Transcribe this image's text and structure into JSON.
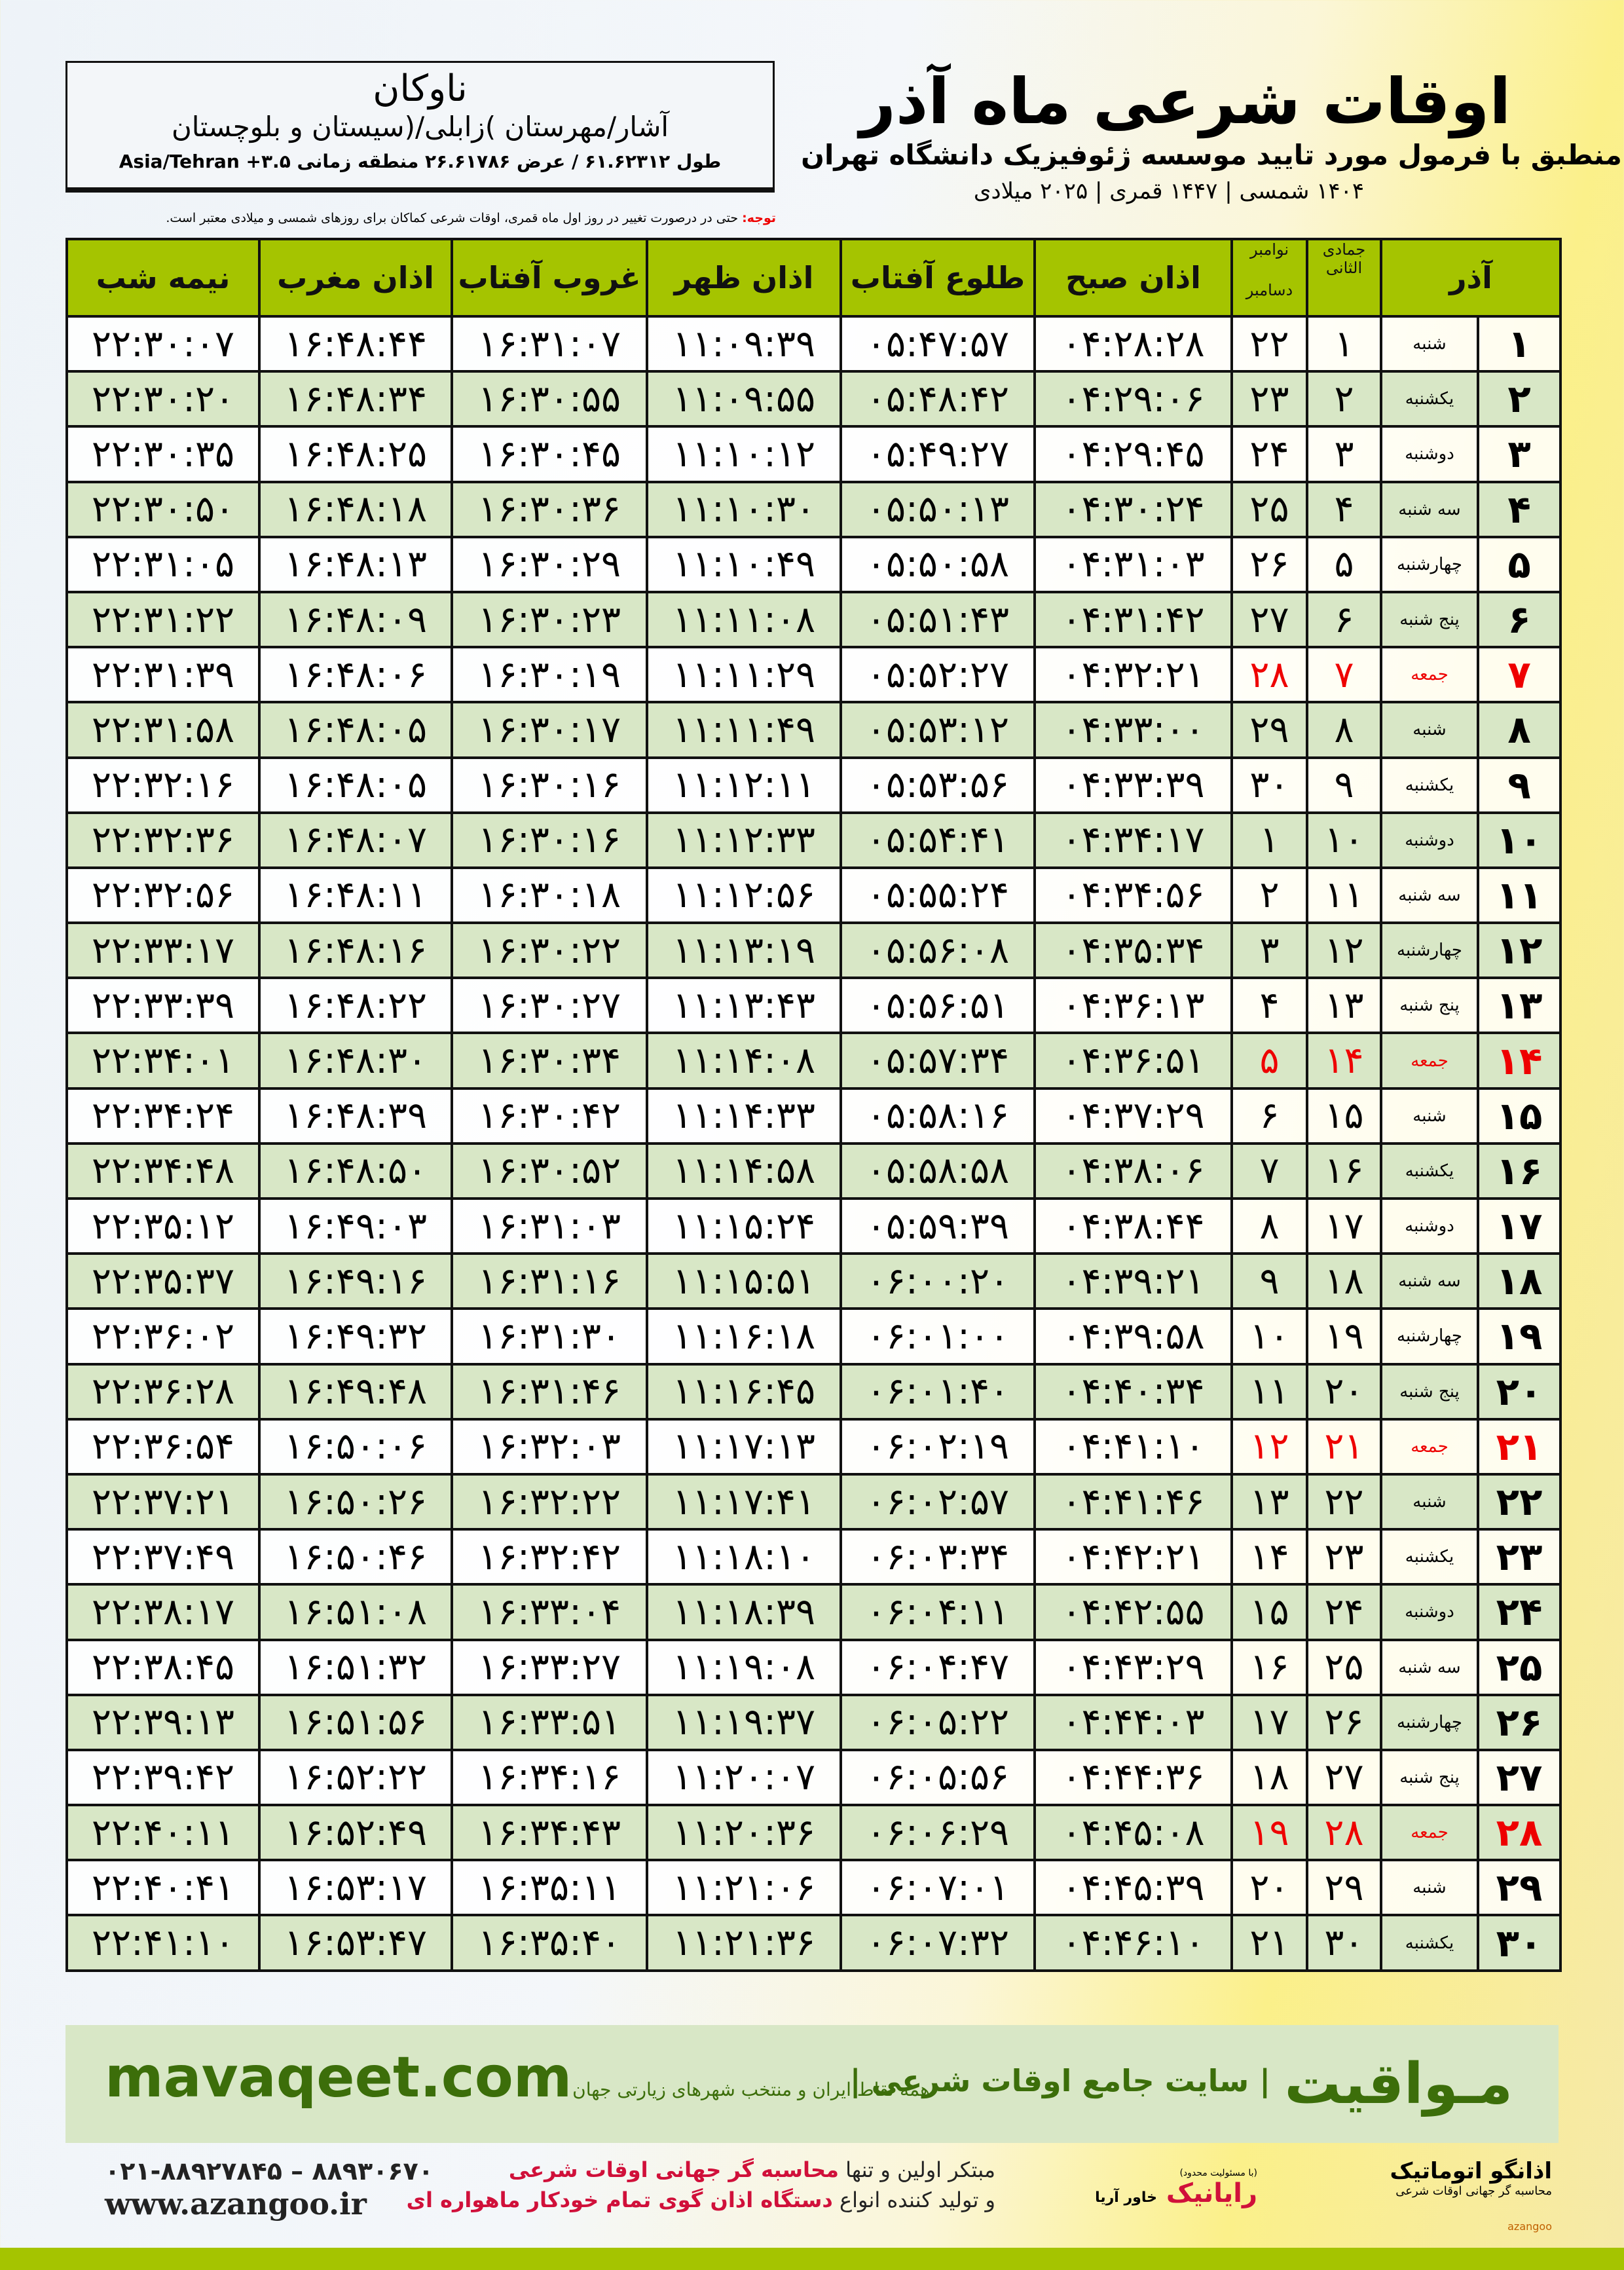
{
  "info": {
    "city": "ناوکان",
    "province": "آشار/مهرستان )زابلی/(سیستان و بلوچستان",
    "coords": "طول ۶۱.۶۲۳۱۲ / عرض ۲۶.۶۱۷۸۶ منطقه زمانی ۳.۵+ Asia/Tehran"
  },
  "title": {
    "main": "اوقات شرعی ماه آذر",
    "sub": "منطبق با فرمول مورد تایید موسسه ژئوفیزیک دانشگاه تهران",
    "years": "۱۴۰۴ شمسی | ۱۴۴۷ قمری | ۲۰۲۵ میلادی"
  },
  "note": {
    "label": "توجه:",
    "text": " حتی در درصورت تغییر در روز اول ماه قمری، اوقات شرعی کماکان برای روزهای شمسی و میلادی معتبر است."
  },
  "table": {
    "headers": {
      "month": "آذر",
      "hijri": "جمادی الثانی",
      "greg1": "نوامبر",
      "greg2": "دسامبر",
      "sobh": "اذان صبح",
      "tolu": "طلوع آفتاب",
      "zohr": "اذان ظهر",
      "ghoroob": "غروب آفتاب",
      "maghreb": "اذان مغرب",
      "nime": "نیمه شب"
    },
    "friday_color": "#e00000",
    "header_color": "#a5c400",
    "rows": [
      [
        "۱",
        "شنبه",
        "۱",
        "۲۲",
        "۰۴:۲۸:۲۸",
        "۰۵:۴۷:۵۷",
        "۱۱:۰۹:۳۹",
        "۱۶:۳۱:۰۷",
        "۱۶:۴۸:۴۴",
        "۲۲:۳۰:۰۷"
      ],
      [
        "۲",
        "یکشنبه",
        "۲",
        "۲۳",
        "۰۴:۲۹:۰۶",
        "۰۵:۴۸:۴۲",
        "۱۱:۰۹:۵۵",
        "۱۶:۳۰:۵۵",
        "۱۶:۴۸:۳۴",
        "۲۲:۳۰:۲۰"
      ],
      [
        "۳",
        "دوشنبه",
        "۳",
        "۲۴",
        "۰۴:۲۹:۴۵",
        "۰۵:۴۹:۲۷",
        "۱۱:۱۰:۱۲",
        "۱۶:۳۰:۴۵",
        "۱۶:۴۸:۲۵",
        "۲۲:۳۰:۳۵"
      ],
      [
        "۴",
        "سه شنبه",
        "۴",
        "۲۵",
        "۰۴:۳۰:۲۴",
        "۰۵:۵۰:۱۳",
        "۱۱:۱۰:۳۰",
        "۱۶:۳۰:۳۶",
        "۱۶:۴۸:۱۸",
        "۲۲:۳۰:۵۰"
      ],
      [
        "۵",
        "چهارشنبه",
        "۵",
        "۲۶",
        "۰۴:۳۱:۰۳",
        "۰۵:۵۰:۵۸",
        "۱۱:۱۰:۴۹",
        "۱۶:۳۰:۲۹",
        "۱۶:۴۸:۱۳",
        "۲۲:۳۱:۰۵"
      ],
      [
        "۶",
        "پنج شنبه",
        "۶",
        "۲۷",
        "۰۴:۳۱:۴۲",
        "۰۵:۵۱:۴۳",
        "۱۱:۱۱:۰۸",
        "۱۶:۳۰:۲۳",
        "۱۶:۴۸:۰۹",
        "۲۲:۳۱:۲۲"
      ],
      [
        "۷",
        "جمعه",
        "۷",
        "۲۸",
        "۰۴:۳۲:۲۱",
        "۰۵:۵۲:۲۷",
        "۱۱:۱۱:۲۹",
        "۱۶:۳۰:۱۹",
        "۱۶:۴۸:۰۶",
        "۲۲:۳۱:۳۹"
      ],
      [
        "۸",
        "شنبه",
        "۸",
        "۲۹",
        "۰۴:۳۳:۰۰",
        "۰۵:۵۳:۱۲",
        "۱۱:۱۱:۴۹",
        "۱۶:۳۰:۱۷",
        "۱۶:۴۸:۰۵",
        "۲۲:۳۱:۵۸"
      ],
      [
        "۹",
        "یکشنبه",
        "۹",
        "۳۰",
        "۰۴:۳۳:۳۹",
        "۰۵:۵۳:۵۶",
        "۱۱:۱۲:۱۱",
        "۱۶:۳۰:۱۶",
        "۱۶:۴۸:۰۵",
        "۲۲:۳۲:۱۶"
      ],
      [
        "۱۰",
        "دوشنبه",
        "۱۰",
        "۱",
        "۰۴:۳۴:۱۷",
        "۰۵:۵۴:۴۱",
        "۱۱:۱۲:۳۳",
        "۱۶:۳۰:۱۶",
        "۱۶:۴۸:۰۷",
        "۲۲:۳۲:۳۶"
      ],
      [
        "۱۱",
        "سه شنبه",
        "۱۱",
        "۲",
        "۰۴:۳۴:۵۶",
        "۰۵:۵۵:۲۴",
        "۱۱:۱۲:۵۶",
        "۱۶:۳۰:۱۸",
        "۱۶:۴۸:۱۱",
        "۲۲:۳۲:۵۶"
      ],
      [
        "۱۲",
        "چهارشنبه",
        "۱۲",
        "۳",
        "۰۴:۳۵:۳۴",
        "۰۵:۵۶:۰۸",
        "۱۱:۱۳:۱۹",
        "۱۶:۳۰:۲۲",
        "۱۶:۴۸:۱۶",
        "۲۲:۳۳:۱۷"
      ],
      [
        "۱۳",
        "پنج شنبه",
        "۱۳",
        "۴",
        "۰۴:۳۶:۱۳",
        "۰۵:۵۶:۵۱",
        "۱۱:۱۳:۴۳",
        "۱۶:۳۰:۲۷",
        "۱۶:۴۸:۲۲",
        "۲۲:۳۳:۳۹"
      ],
      [
        "۱۴",
        "جمعه",
        "۱۴",
        "۵",
        "۰۴:۳۶:۵۱",
        "۰۵:۵۷:۳۴",
        "۱۱:۱۴:۰۸",
        "۱۶:۳۰:۳۴",
        "۱۶:۴۸:۳۰",
        "۲۲:۳۴:۰۱"
      ],
      [
        "۱۵",
        "شنبه",
        "۱۵",
        "۶",
        "۰۴:۳۷:۲۹",
        "۰۵:۵۸:۱۶",
        "۱۱:۱۴:۳۳",
        "۱۶:۳۰:۴۲",
        "۱۶:۴۸:۳۹",
        "۲۲:۳۴:۲۴"
      ],
      [
        "۱۶",
        "یکشنبه",
        "۱۶",
        "۷",
        "۰۴:۳۸:۰۶",
        "۰۵:۵۸:۵۸",
        "۱۱:۱۴:۵۸",
        "۱۶:۳۰:۵۲",
        "۱۶:۴۸:۵۰",
        "۲۲:۳۴:۴۸"
      ],
      [
        "۱۷",
        "دوشنبه",
        "۱۷",
        "۸",
        "۰۴:۳۸:۴۴",
        "۰۵:۵۹:۳۹",
        "۱۱:۱۵:۲۴",
        "۱۶:۳۱:۰۳",
        "۱۶:۴۹:۰۳",
        "۲۲:۳۵:۱۲"
      ],
      [
        "۱۸",
        "سه شنبه",
        "۱۸",
        "۹",
        "۰۴:۳۹:۲۱",
        "۰۶:۰۰:۲۰",
        "۱۱:۱۵:۵۱",
        "۱۶:۳۱:۱۶",
        "۱۶:۴۹:۱۶",
        "۲۲:۳۵:۳۷"
      ],
      [
        "۱۹",
        "چهارشنبه",
        "۱۹",
        "۱۰",
        "۰۴:۳۹:۵۸",
        "۰۶:۰۱:۰۰",
        "۱۱:۱۶:۱۸",
        "۱۶:۳۱:۳۰",
        "۱۶:۴۹:۳۲",
        "۲۲:۳۶:۰۲"
      ],
      [
        "۲۰",
        "پنج شنبه",
        "۲۰",
        "۱۱",
        "۰۴:۴۰:۳۴",
        "۰۶:۰۱:۴۰",
        "۱۱:۱۶:۴۵",
        "۱۶:۳۱:۴۶",
        "۱۶:۴۹:۴۸",
        "۲۲:۳۶:۲۸"
      ],
      [
        "۲۱",
        "جمعه",
        "۲۱",
        "۱۲",
        "۰۴:۴۱:۱۰",
        "۰۶:۰۲:۱۹",
        "۱۱:۱۷:۱۳",
        "۱۶:۳۲:۰۳",
        "۱۶:۵۰:۰۶",
        "۲۲:۳۶:۵۴"
      ],
      [
        "۲۲",
        "شنبه",
        "۲۲",
        "۱۳",
        "۰۴:۴۱:۴۶",
        "۰۶:۰۲:۵۷",
        "۱۱:۱۷:۴۱",
        "۱۶:۳۲:۲۲",
        "۱۶:۵۰:۲۶",
        "۲۲:۳۷:۲۱"
      ],
      [
        "۲۳",
        "یکشنبه",
        "۲۳",
        "۱۴",
        "۰۴:۴۲:۲۱",
        "۰۶:۰۳:۳۴",
        "۱۱:۱۸:۱۰",
        "۱۶:۳۲:۴۲",
        "۱۶:۵۰:۴۶",
        "۲۲:۳۷:۴۹"
      ],
      [
        "۲۴",
        "دوشنبه",
        "۲۴",
        "۱۵",
        "۰۴:۴۲:۵۵",
        "۰۶:۰۴:۱۱",
        "۱۱:۱۸:۳۹",
        "۱۶:۳۳:۰۴",
        "۱۶:۵۱:۰۸",
        "۲۲:۳۸:۱۷"
      ],
      [
        "۲۵",
        "سه شنبه",
        "۲۵",
        "۱۶",
        "۰۴:۴۳:۲۹",
        "۰۶:۰۴:۴۷",
        "۱۱:۱۹:۰۸",
        "۱۶:۳۳:۲۷",
        "۱۶:۵۱:۳۲",
        "۲۲:۳۸:۴۵"
      ],
      [
        "۲۶",
        "چهارشنبه",
        "۲۶",
        "۱۷",
        "۰۴:۴۴:۰۳",
        "۰۶:۰۵:۲۲",
        "۱۱:۱۹:۳۷",
        "۱۶:۳۳:۵۱",
        "۱۶:۵۱:۵۶",
        "۲۲:۳۹:۱۳"
      ],
      [
        "۲۷",
        "پنج شنبه",
        "۲۷",
        "۱۸",
        "۰۴:۴۴:۳۶",
        "۰۶:۰۵:۵۶",
        "۱۱:۲۰:۰۷",
        "۱۶:۳۴:۱۶",
        "۱۶:۵۲:۲۲",
        "۲۲:۳۹:۴۲"
      ],
      [
        "۲۸",
        "جمعه",
        "۲۸",
        "۱۹",
        "۰۴:۴۵:۰۸",
        "۰۶:۰۶:۲۹",
        "۱۱:۲۰:۳۶",
        "۱۶:۳۴:۴۳",
        "۱۶:۵۲:۴۹",
        "۲۲:۴۰:۱۱"
      ],
      [
        "۲۹",
        "شنبه",
        "۲۹",
        "۲۰",
        "۰۴:۴۵:۳۹",
        "۰۶:۰۷:۰۱",
        "۱۱:۲۱:۰۶",
        "۱۶:۳۵:۱۱",
        "۱۶:۵۳:۱۷",
        "۲۲:۴۰:۴۱"
      ],
      [
        "۳۰",
        "یکشنبه",
        "۳۰",
        "۲۱",
        "۰۴:۴۶:۱۰",
        "۰۶:۰۷:۳۲",
        "۱۱:۲۱:۳۶",
        "۱۶:۳۵:۴۰",
        "۱۶:۵۳:۴۷",
        "۲۲:۴۱:۱۰"
      ]
    ],
    "friday_rows": [
      6,
      13,
      20,
      27
    ]
  },
  "footer": {
    "brand": "مـواقیت",
    "tagline": "| سایت جامع اوقات شرعی |",
    "tagline2": "همه نقاط ایران و منتخب شهرهای زیارتی جهان",
    "site": "mavaqeet.com"
  },
  "bottom": {
    "promo_line1_a": "مبتکر اولین و تنها ",
    "promo_line1_b": "محاسبه گر جهانی اوقات شرعی",
    "promo_line2_a": "و تولید کننده انواع ",
    "promo_line2_b": "دستگاه اذان گوی تمام خودکار ماهواره ای",
    "phone": "۰۲۱-۸۸۹۲۷۸۴۵ – ۸۸۹۳۰۶۷۰",
    "web": "www.azangoo.ir",
    "logo_azangoo": "اذانگو اتوماتیک",
    "logo_azangoo_sub": "محاسبه گر جهانی اوقات شرعی",
    "logo_azangoo_en": "azangoo",
    "logo_rayanik": "رایانیک",
    "logo_rayanik_sub": "خاور آریا",
    "logo_rayanik_note": "(با مسئولیت محدود)"
  }
}
